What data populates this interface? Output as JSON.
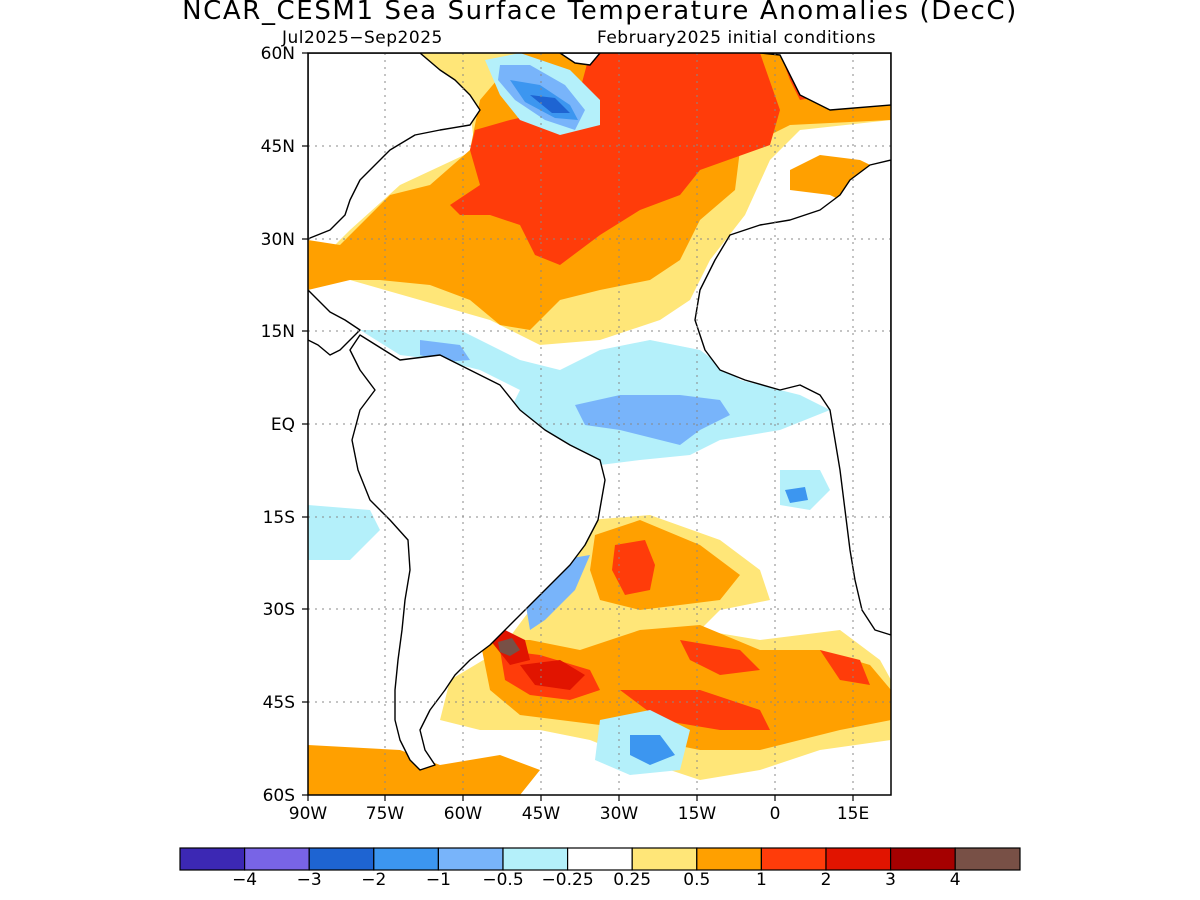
{
  "header": {
    "title": "NCAR_CESM1 Sea Surface Temperature Anomalies (DecC)",
    "period": "Jul2025−Sep2025",
    "init": "February2025 initial conditions"
  },
  "map": {
    "lat_ticks": [
      "60N",
      "45N",
      "30N",
      "15N",
      "EQ",
      "15S",
      "30S",
      "45S",
      "60S"
    ],
    "lon_ticks": [
      "90W",
      "75W",
      "60W",
      "45W",
      "30W",
      "15W",
      "0",
      "15E"
    ],
    "land_color": "#ffffff",
    "coast_color": "#000000",
    "anomaly_regions": [
      {
        "name": "north-atlantic-warm",
        "level": "1 to 2",
        "color": "#ff3c0a"
      },
      {
        "name": "subtropical-north-atlantic-warm",
        "level": "0.5 to 1",
        "color": "#ffa000"
      },
      {
        "name": "labrador-sea-cold",
        "level": "-1 to -2",
        "color": "#1e64d2"
      },
      {
        "name": "equatorial-atlantic-cool",
        "level": "-0.5 to -1",
        "color": "#78b4fa"
      },
      {
        "name": "south-atlantic-warm",
        "level": "1 to 2",
        "color": "#ff3c0a"
      },
      {
        "name": "brazil-malvinas-confluence",
        "level": "above 4",
        "color": "#7a5044"
      }
    ]
  },
  "colorbar": {
    "colors": [
      "#3c28b4",
      "#7864e6",
      "#1e64d2",
      "#3c96f0",
      "#78b4fa",
      "#b4f0fa",
      "#ffffff",
      "#ffe678",
      "#ffa000",
      "#ff3c0a",
      "#e11400",
      "#a50000",
      "#785046"
    ],
    "labels": [
      "−4",
      "−3",
      "−2",
      "−1",
      "−0.5",
      "−0.25",
      "0.25",
      "0.5",
      "1",
      "2",
      "3",
      "4"
    ]
  }
}
